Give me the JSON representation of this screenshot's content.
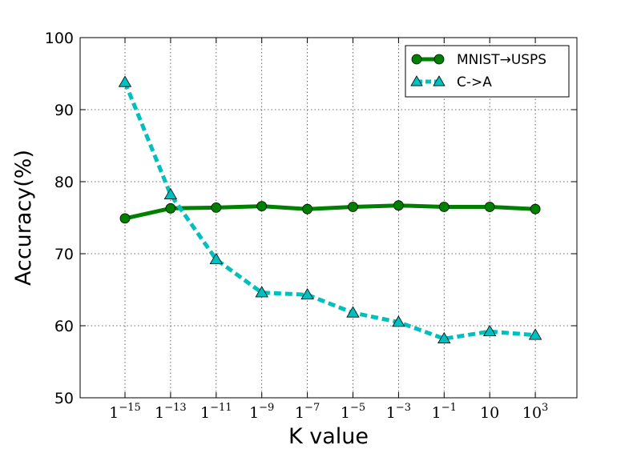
{
  "chart_data": {
    "type": "line",
    "xlabel": "K value",
    "ylabel": "Accuracy(%)",
    "ylim": [
      50,
      100
    ],
    "yticks": [
      "50",
      "60",
      "70",
      "80",
      "90",
      "100"
    ],
    "categories": [
      {
        "base": "1",
        "exp": "−15"
      },
      {
        "base": "1",
        "exp": "−13"
      },
      {
        "base": "1",
        "exp": "−11"
      },
      {
        "base": "1",
        "exp": "−9"
      },
      {
        "base": "1",
        "exp": "−7"
      },
      {
        "base": "1",
        "exp": "−5"
      },
      {
        "base": "1",
        "exp": "−3"
      },
      {
        "base": "1",
        "exp": "−1"
      },
      {
        "base": "10",
        "exp": ""
      },
      {
        "base": "10",
        "exp": "3"
      }
    ],
    "grid": true,
    "legend_position": "top-right",
    "series": [
      {
        "name": "MNIST→USPS",
        "color": "#008000",
        "marker": "circle",
        "linestyle": "solid",
        "values": [
          74.9,
          76.3,
          76.4,
          76.6,
          76.2,
          76.5,
          76.7,
          76.5,
          76.5,
          76.2
        ]
      },
      {
        "name": "C->A",
        "color": "#00bfbf",
        "marker": "triangle",
        "linestyle": "dashed",
        "values": [
          93.8,
          78.2,
          69.2,
          64.6,
          64.3,
          61.8,
          60.5,
          58.2,
          59.2,
          58.7
        ]
      }
    ]
  }
}
